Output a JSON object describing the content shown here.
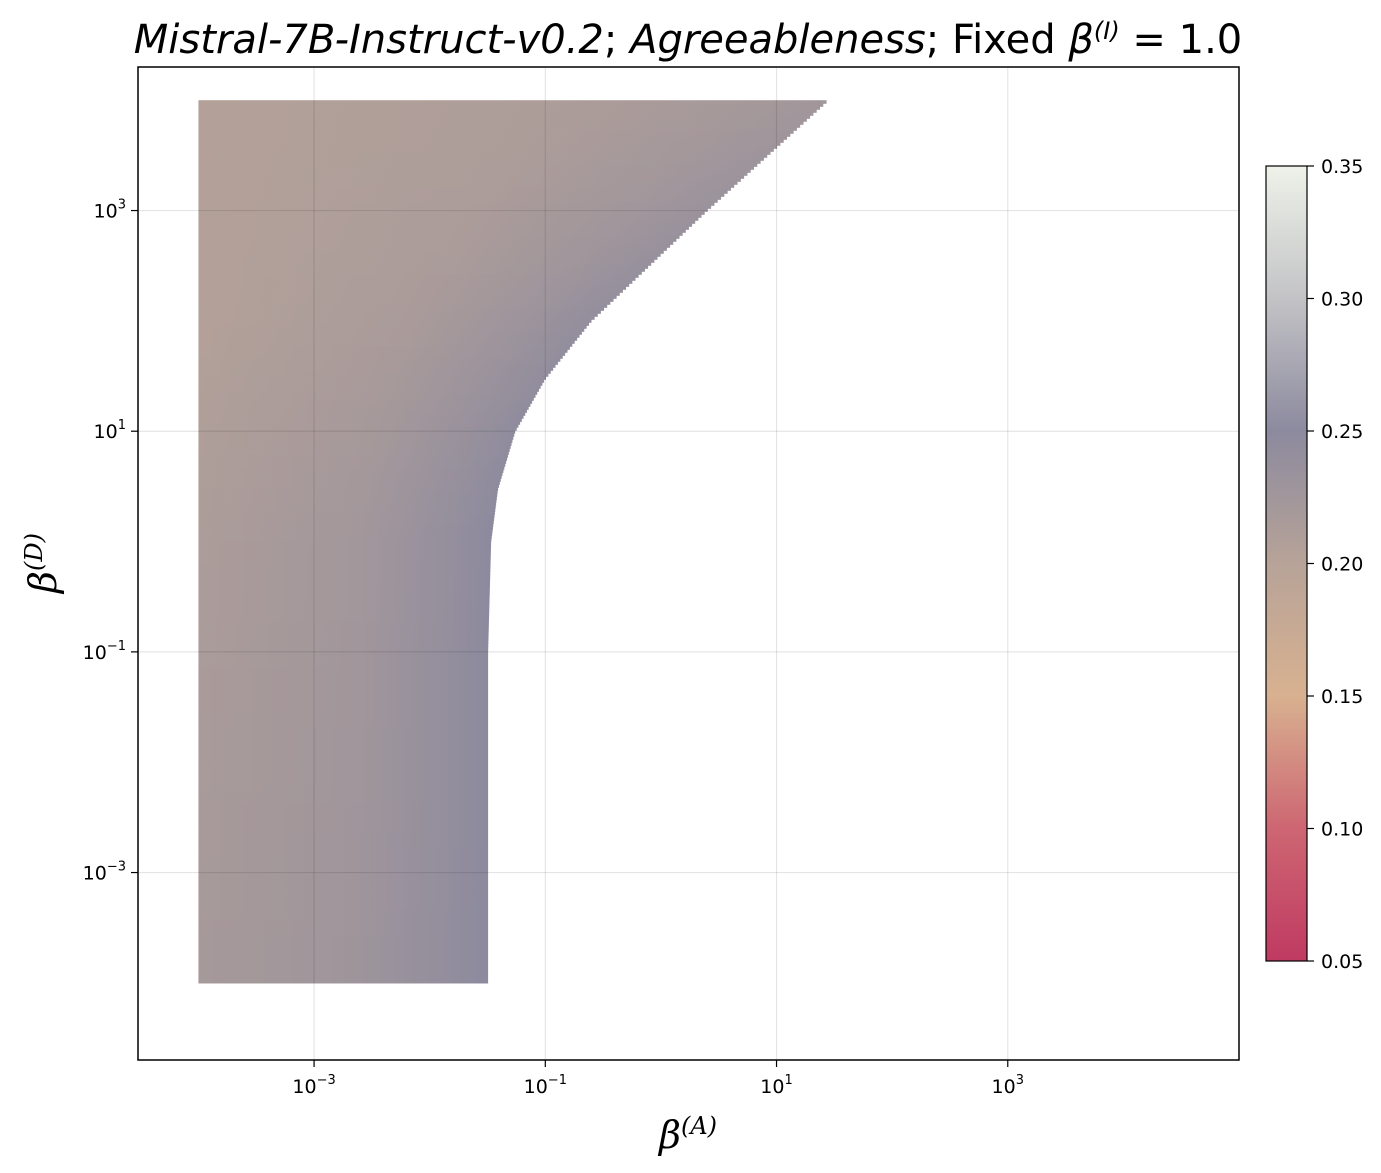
{
  "chart_data": {
    "type": "heatmap",
    "title": {
      "model": "Mistral-7B-Instruct-v0.2",
      "trait": "Agreeableness",
      "fixed_prefix": "Fixed",
      "fixed_param": "β",
      "fixed_param_sup": "(I)",
      "fixed_value": "= 1.0"
    },
    "xlabel": {
      "base": "β",
      "sup": "(A)"
    },
    "ylabel": {
      "base": "β",
      "sup": "(D)"
    },
    "x_scale": "log",
    "y_scale": "log",
    "xlim": [
      3e-05,
      100000
    ],
    "ylim": [
      2e-05,
      20000
    ],
    "x_ticks": [
      {
        "value": 0.001,
        "base": "10",
        "exp": "−3"
      },
      {
        "value": 0.1,
        "base": "10",
        "exp": "−1"
      },
      {
        "value": 10,
        "base": "10",
        "exp": "1"
      },
      {
        "value": 1000,
        "base": "10",
        "exp": "3"
      }
    ],
    "y_ticks": [
      {
        "value": 0.001,
        "base": "10",
        "exp": "−3"
      },
      {
        "value": 0.1,
        "base": "10",
        "exp": "−1"
      },
      {
        "value": 10,
        "base": "10",
        "exp": "1"
      },
      {
        "value": 1000,
        "base": "10",
        "exp": "3"
      }
    ],
    "grid": true,
    "colorbar": {
      "range": [
        0.05,
        0.35
      ],
      "ticks": [
        "0.05",
        "0.10",
        "0.15",
        "0.20",
        "0.25",
        "0.30",
        "0.35"
      ],
      "tick_values": [
        0.05,
        0.1,
        0.15,
        0.2,
        0.25,
        0.3,
        0.35
      ],
      "colormap": [
        {
          "v": 0.05,
          "color": "#c03a62"
        },
        {
          "v": 0.1,
          "color": "#cd6672"
        },
        {
          "v": 0.15,
          "color": "#d8b190"
        },
        {
          "v": 0.2,
          "color": "#b7a398"
        },
        {
          "v": 0.25,
          "color": "#8c8a9e"
        },
        {
          "v": 0.3,
          "color": "#c3c3c6"
        },
        {
          "v": 0.35,
          "color": "#eef2e9"
        }
      ]
    },
    "region": {
      "beta_a_min": 0.0001,
      "beta_d_min": 0.0001,
      "beta_d_max": 10000,
      "boundary": [
        {
          "beta_d": 0.0001,
          "beta_a_max": 0.032
        },
        {
          "beta_d": 0.1,
          "beta_a_max": 0.032
        },
        {
          "beta_d": 1,
          "beta_a_max": 0.034
        },
        {
          "beta_d": 3,
          "beta_a_max": 0.039
        },
        {
          "beta_d": 10,
          "beta_a_max": 0.055
        },
        {
          "beta_d": 30,
          "beta_a_max": 0.1
        },
        {
          "beta_d": 100,
          "beta_a_max": 0.25
        },
        {
          "beta_d": 1000,
          "beta_a_max": 2.5
        },
        {
          "beta_d": 10000,
          "beta_a_max": 28
        }
      ],
      "value_samples": [
        {
          "beta_d": 10000,
          "left": 0.205,
          "edge": 0.225
        },
        {
          "beta_d": 100,
          "left": 0.205,
          "edge": 0.242
        },
        {
          "beta_d": 1,
          "left": 0.213,
          "edge": 0.25
        },
        {
          "beta_d": 0.0001,
          "left": 0.22,
          "edge": 0.25
        }
      ]
    }
  }
}
